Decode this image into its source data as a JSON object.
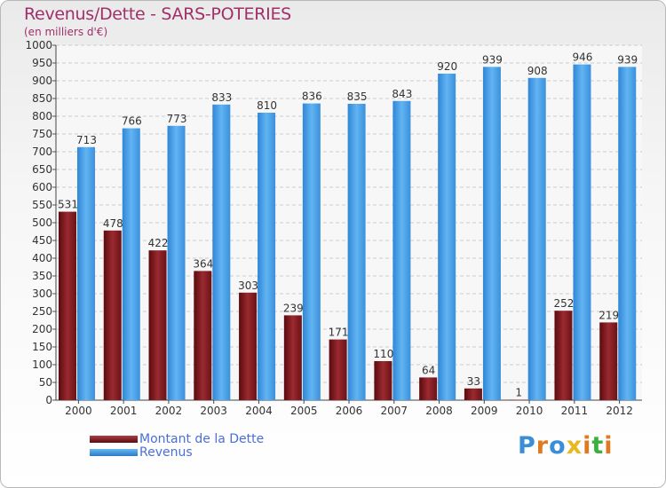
{
  "chart_data": {
    "type": "bar",
    "title": "Revenus/Dette - SARS-POTERIES",
    "subtitle": "(en milliers d'€)",
    "categories": [
      "2000",
      "2001",
      "2002",
      "2003",
      "2004",
      "2005",
      "2006",
      "2007",
      "2008",
      "2009",
      "2010",
      "2011",
      "2012"
    ],
    "series": [
      {
        "name": "Montant de la Dette",
        "color": "#7a1418",
        "values": [
          531,
          478,
          422,
          364,
          303,
          239,
          171,
          110,
          64,
          33,
          1,
          252,
          219
        ]
      },
      {
        "name": "Revenus",
        "color": "#3d9ae2",
        "values": [
          713,
          766,
          773,
          833,
          810,
          836,
          835,
          843,
          920,
          939,
          908,
          946,
          939
        ]
      }
    ],
    "ylim": [
      0,
      1000
    ],
    "ytick_step": 50,
    "grid": true,
    "legend": "bottom-left"
  },
  "logo": {
    "letters": [
      "P",
      "r",
      "o",
      "x",
      "i",
      "t",
      "i"
    ]
  }
}
